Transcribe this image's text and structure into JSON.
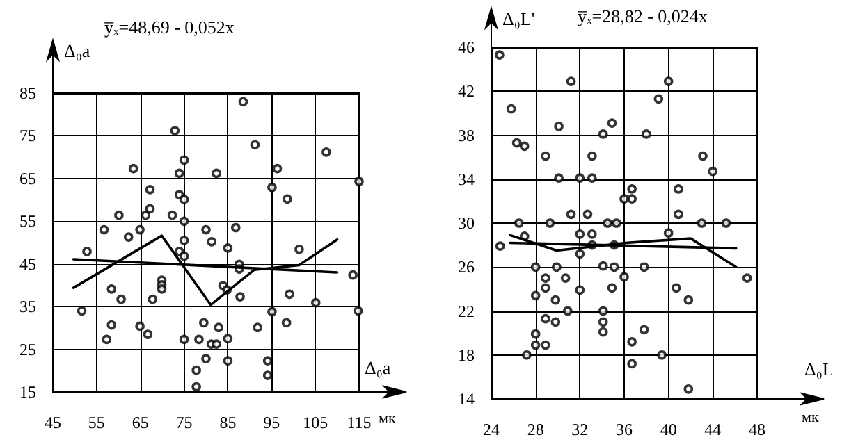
{
  "chart_data": [
    {
      "type": "scatter",
      "title": "y̅ₓ=48,69 - 0,052x",
      "xlabel": "Δ₀a",
      "ylabel": "Δ₀a",
      "annotations": [
        "мк"
      ],
      "xlim": [
        45,
        115
      ],
      "ylim": [
        15,
        85
      ],
      "xticks": [
        45,
        55,
        65,
        75,
        85,
        95,
        105,
        115
      ],
      "yticks": [
        15,
        25,
        35,
        45,
        55,
        65,
        75,
        85
      ],
      "grid": true,
      "marker": "circle",
      "series": [
        {
          "color": "#000000",
          "x": [
            88.5,
            72.9,
            91.2,
            107.5,
            75,
            63.4,
            73.9,
            82.4,
            96.3,
            115,
            95.1,
            67.2,
            73.9,
            75,
            98.6,
            60.1,
            66.2,
            67.2,
            72.3,
            75,
            56.7,
            64.9,
            62.3,
            80,
            86.8,
            75,
            81.3,
            52.8,
            73.9,
            75,
            85,
            101.3,
            87.6,
            87.6,
            113.6,
            69.9,
            69.9,
            69.9,
            58.4,
            83.9,
            84.8,
            60.6,
            67.8,
            87.8,
            99.1,
            105.1,
            51.6,
            95.1,
            114.8,
            58.4,
            64.9,
            79.5,
            82.9,
            91.8,
            98.4,
            57.3,
            66.7,
            75,
            78.4,
            85,
            81.2,
            82.4,
            80,
            85,
            94.1,
            77.8,
            94.1,
            77.8
          ],
          "values": [
            83,
            76.2,
            72.9,
            71.2,
            69.3,
            67.3,
            66.2,
            66.2,
            67.3,
            64.3,
            62.9,
            62.4,
            61.2,
            60.1,
            60.2,
            56.4,
            56.4,
            57.9,
            56.4,
            55,
            53,
            53,
            51.3,
            53,
            53.5,
            50.5,
            50.2,
            47.9,
            47.9,
            46.8,
            48.7,
            48.4,
            44.9,
            43.8,
            42.4,
            41.2,
            40.1,
            39.1,
            39.1,
            39.9,
            38.9,
            36.7,
            36.7,
            37.3,
            37.9,
            35.9,
            34,
            33.8,
            34,
            30.7,
            30.4,
            31.2,
            30.1,
            30.1,
            31.2,
            27.3,
            28.5,
            27.3,
            27.3,
            27.5,
            26.2,
            26.2,
            22.8,
            22.3,
            22.3,
            20.1,
            18.9,
            16.2
          ]
        },
        {
          "type": "line",
          "color": "#000000",
          "marker": "none",
          "line_style": "solid",
          "x": [
            49.7,
            110
          ],
          "values": [
            46.1,
            43.0
          ]
        },
        {
          "type": "line",
          "color": "#000000",
          "marker": "none",
          "line_style": "solid",
          "x": [
            49.7,
            69.9,
            81.1,
            91,
            101.3,
            110
          ],
          "values": [
            39.4,
            51.6,
            35.4,
            43.6,
            44.7,
            50.7
          ]
        }
      ]
    },
    {
      "type": "scatter",
      "title": "y̅ₓ=28,82 - 0,024x",
      "xlabel": "Δ₀L",
      "ylabel": "Δ₀L'",
      "annotations": [
        "мк"
      ],
      "xlim": [
        24,
        48
      ],
      "ylim": [
        14,
        46
      ],
      "xticks": [
        24,
        28,
        32,
        36,
        40,
        44,
        48
      ],
      "yticks": [
        14,
        18,
        22,
        26,
        30,
        34,
        38,
        42,
        46
      ],
      "grid": true,
      "marker": "circle",
      "series": [
        {
          "color": "#000000",
          "x": [
            24.75,
            25.8,
            26.3,
            27,
            28.9,
            30.1,
            31.2,
            30.1,
            32,
            33.1,
            33.1,
            34.1,
            34.9,
            38,
            39.1,
            40,
            43.1,
            44,
            36,
            36.7,
            36.7,
            40.9,
            31.2,
            32.7,
            40.9,
            26.5,
            29.3,
            34.5,
            35.3,
            43,
            45.2,
            27,
            32,
            33.1,
            40,
            24.8,
            33.1,
            35.1,
            32,
            28,
            29.9,
            34.1,
            35.1,
            37.8,
            28.9,
            30.7,
            36,
            47.1,
            28.9,
            34.9,
            40.7,
            32,
            28,
            29.8,
            41.8,
            30.9,
            34.1,
            34.1,
            28.9,
            29.8,
            34.1,
            37.8,
            28,
            28,
            28.9,
            27.2,
            36.7,
            39.4,
            36.7,
            41.8
          ],
          "values": [
            45.3,
            40.4,
            37.3,
            37,
            36.1,
            38.8,
            42.9,
            34.1,
            34.1,
            34.1,
            36.1,
            38.1,
            39.1,
            38.1,
            41.3,
            42.9,
            36.1,
            34.7,
            32.2,
            32.2,
            33.1,
            33.1,
            30.8,
            30.8,
            30.8,
            30,
            30,
            30,
            30,
            30,
            30,
            28.8,
            29,
            29,
            29.1,
            27.9,
            28,
            28,
            27.2,
            26,
            26,
            26.1,
            26,
            26,
            25,
            25,
            25.1,
            25,
            24.1,
            24.1,
            24.1,
            23.9,
            23.4,
            23,
            23,
            22,
            22,
            21,
            21.3,
            21,
            20.1,
            20.3,
            19.9,
            18.9,
            18.9,
            18,
            19.2,
            18,
            17.2,
            14.9
          ]
        },
        {
          "type": "line",
          "color": "#000000",
          "marker": "none",
          "line_style": "solid",
          "x": [
            25.7,
            46.1
          ],
          "values": [
            28.2,
            27.7
          ]
        },
        {
          "type": "line",
          "color": "#000000",
          "marker": "none",
          "line_style": "solid",
          "x": [
            25.7,
            29.9,
            36.1,
            42,
            46.1
          ],
          "values": [
            28.9,
            27.5,
            28.2,
            28.6,
            26.0
          ]
        }
      ]
    }
  ]
}
